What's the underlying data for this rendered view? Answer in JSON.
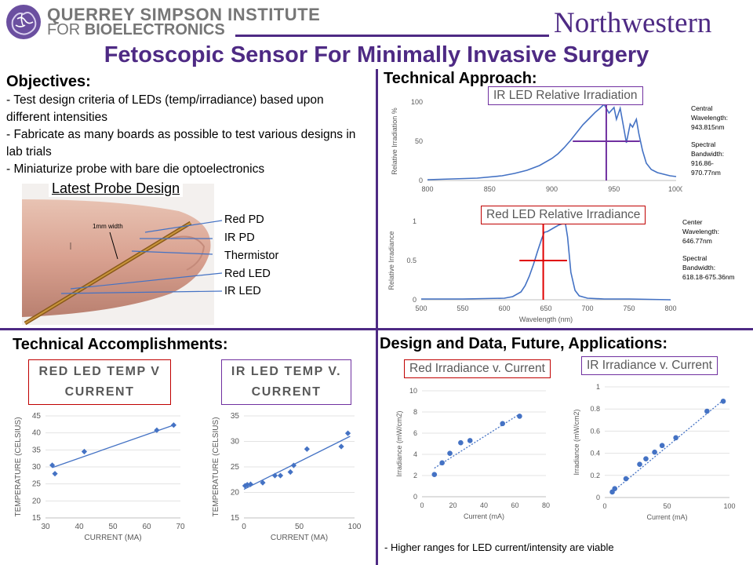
{
  "header": {
    "institute_line1": "QUERREY SIMPSON INSTITUTE",
    "institute_line2_a": "FOR ",
    "institute_line2_b": "BIOELECTRONICS",
    "university": "Northwestern",
    "title": "Fetoscopic Sensor For Minimally Invasive Surgery"
  },
  "objectives": {
    "heading": "Objectives:",
    "items": [
      "- Test design criteria of LEDs (temp/irradiance) based upon different intensities",
      "- Fabricate as many boards as possible to test various designs in lab trials",
      "- Miniaturize probe with bare die optoelectronics"
    ]
  },
  "probe": {
    "heading": "Latest Probe Design",
    "width_label": "1mm width",
    "labels": [
      "Red PD",
      "IR PD",
      "Thermistor",
      "Red LED",
      "IR LED"
    ]
  },
  "approach": {
    "heading": "Technical Approach:",
    "ir_note": [
      "Central",
      "Wavelength:",
      "943.815nm",
      "",
      "Spectral",
      "Bandwidth:",
      "916.86-",
      "970.77nm"
    ],
    "red_note": [
      "Center",
      "Wavelength:",
      "646.77nm",
      "",
      "Spectral",
      "Bandwidth:",
      "618.18-675.36nm"
    ]
  },
  "accomplishments": {
    "heading": "Technical Accomplishments:"
  },
  "design": {
    "heading": "Design and Data, Future, Applications:",
    "footnote": "- Higher ranges for LED current/intensity are viable"
  },
  "colors": {
    "purple": "#4e2a84",
    "series_blue": "#4472c4",
    "red_box": "#c00000",
    "ir_box": "#7030a0"
  },
  "chart_data": [
    {
      "id": "ir_spectrum",
      "type": "line",
      "title": "IR LED Relative Irradiation",
      "ylabel": "Relative Irradiation %",
      "xlabel": "",
      "xlim": [
        800,
        1000
      ],
      "ylim": [
        0,
        100
      ],
      "xticks": [
        800,
        850,
        900,
        950,
        1000
      ],
      "yticks": [
        0,
        50,
        100
      ],
      "x": [
        800,
        820,
        840,
        860,
        870,
        880,
        890,
        900,
        905,
        910,
        915,
        920,
        925,
        930,
        935,
        938,
        942,
        946,
        950,
        952,
        955,
        958,
        960,
        963,
        965,
        968,
        970,
        973,
        976,
        980,
        985,
        990,
        995,
        1000
      ],
      "y": [
        1,
        2,
        3,
        6,
        9,
        13,
        19,
        28,
        34,
        42,
        51,
        61,
        71,
        79,
        87,
        91,
        97,
        86,
        93,
        78,
        92,
        66,
        48,
        72,
        68,
        78,
        60,
        38,
        22,
        14,
        10,
        8,
        6,
        5
      ],
      "markers": {
        "center_x": 943.815,
        "bandwidth": [
          916.86,
          970.77
        ],
        "bandwidth_y": 50
      }
    },
    {
      "id": "red_spectrum",
      "type": "line",
      "title": "Red LED Relative Irradiance",
      "ylabel": "Relative Irradiance",
      "xlabel": "Wavelength (nm)",
      "xlim": [
        500,
        800
      ],
      "ylim": [
        0,
        1
      ],
      "xticks": [
        500,
        550,
        600,
        650,
        700,
        750,
        800
      ],
      "yticks": [
        0,
        0.5,
        1
      ],
      "x": [
        500,
        550,
        600,
        610,
        620,
        625,
        630,
        635,
        640,
        645,
        648,
        652,
        660,
        665,
        670,
        673,
        676,
        680,
        685,
        690,
        700,
        720,
        750,
        800
      ],
      "y": [
        0.01,
        0.01,
        0.02,
        0.04,
        0.1,
        0.18,
        0.3,
        0.45,
        0.62,
        0.78,
        0.86,
        0.87,
        0.92,
        0.95,
        0.97,
        1.0,
        0.8,
        0.35,
        0.12,
        0.05,
        0.02,
        0.01,
        0.01,
        0.0
      ],
      "markers": {
        "center_x": 646.77,
        "bandwidth": [
          618.18,
          675.36
        ],
        "bandwidth_y": 0.5
      }
    },
    {
      "id": "red_temp",
      "type": "scatter",
      "title_lines": [
        "RED LED TEMP V",
        "CURRENT"
      ],
      "xlabel": "CURRENT (MA)",
      "ylabel": "TEMPERATURE (CELSIUS)",
      "xlim": [
        30,
        70
      ],
      "ylim": [
        15,
        45
      ],
      "xticks": [
        30,
        40,
        50,
        60,
        70
      ],
      "yticks": [
        15,
        20,
        25,
        30,
        35,
        40,
        45
      ],
      "points": [
        [
          32,
          30.5
        ],
        [
          32.8,
          28
        ],
        [
          41.5,
          34.5
        ],
        [
          63,
          40.8
        ],
        [
          68,
          42.3
        ]
      ],
      "trendline": [
        [
          32,
          29.8
        ],
        [
          68,
          42.3
        ]
      ]
    },
    {
      "id": "ir_temp",
      "type": "scatter",
      "title_lines": [
        "IR LED TEMP V.",
        "CURRENT"
      ],
      "xlabel": "CURRENT (MA)",
      "ylabel": "TEMPERATURE (CELSIUS)",
      "xlim": [
        0,
        100
      ],
      "ylim": [
        15,
        35
      ],
      "xticks": [
        0,
        50,
        100
      ],
      "yticks": [
        15,
        20,
        25,
        30,
        35
      ],
      "points": [
        [
          1,
          21.3
        ],
        [
          3,
          21.5
        ],
        [
          6,
          21.6
        ],
        [
          17,
          21.9
        ],
        [
          28,
          23.3
        ],
        [
          33,
          23.3
        ],
        [
          42,
          24
        ],
        [
          45,
          25.3
        ],
        [
          57,
          28.5
        ],
        [
          88,
          29
        ],
        [
          94,
          31.6
        ]
      ],
      "trendline": [
        [
          0,
          20.6
        ],
        [
          96,
          31
        ]
      ]
    },
    {
      "id": "red_irradiance",
      "type": "scatter",
      "title": "Red Irradiance v. Current",
      "xlabel": "Current (mA)",
      "ylabel": "Irradiance (mW/cm2)",
      "xlim": [
        0,
        80
      ],
      "ylim": [
        0,
        10
      ],
      "xticks": [
        0,
        20,
        40,
        60,
        80
      ],
      "yticks": [
        0,
        2,
        4,
        6,
        8,
        10
      ],
      "points": [
        [
          8,
          2.1
        ],
        [
          13,
          3.2
        ],
        [
          18,
          4.1
        ],
        [
          25,
          5.1
        ],
        [
          31,
          5.3
        ],
        [
          52,
          6.9
        ],
        [
          63,
          7.6
        ]
      ],
      "trendline": [
        [
          8,
          2.7
        ],
        [
          63,
          7.8
        ]
      ]
    },
    {
      "id": "ir_irradiance",
      "type": "scatter",
      "title": "IR Irradiance v. Current",
      "xlabel": "Current (mA)",
      "ylabel": "Irradiance (mW/cm2)",
      "xlim": [
        0,
        100
      ],
      "ylim": [
        0,
        1
      ],
      "xticks": [
        0,
        50,
        100
      ],
      "yticks": [
        0,
        0.2,
        0.4,
        0.6,
        0.8,
        1
      ],
      "points": [
        [
          6,
          0.05
        ],
        [
          8,
          0.08
        ],
        [
          17,
          0.17
        ],
        [
          28,
          0.3
        ],
        [
          33,
          0.35
        ],
        [
          40,
          0.41
        ],
        [
          46,
          0.47
        ],
        [
          57,
          0.54
        ],
        [
          82,
          0.78
        ],
        [
          95,
          0.87
        ]
      ],
      "trendline": [
        [
          5,
          0.04
        ],
        [
          95,
          0.88
        ]
      ]
    }
  ]
}
